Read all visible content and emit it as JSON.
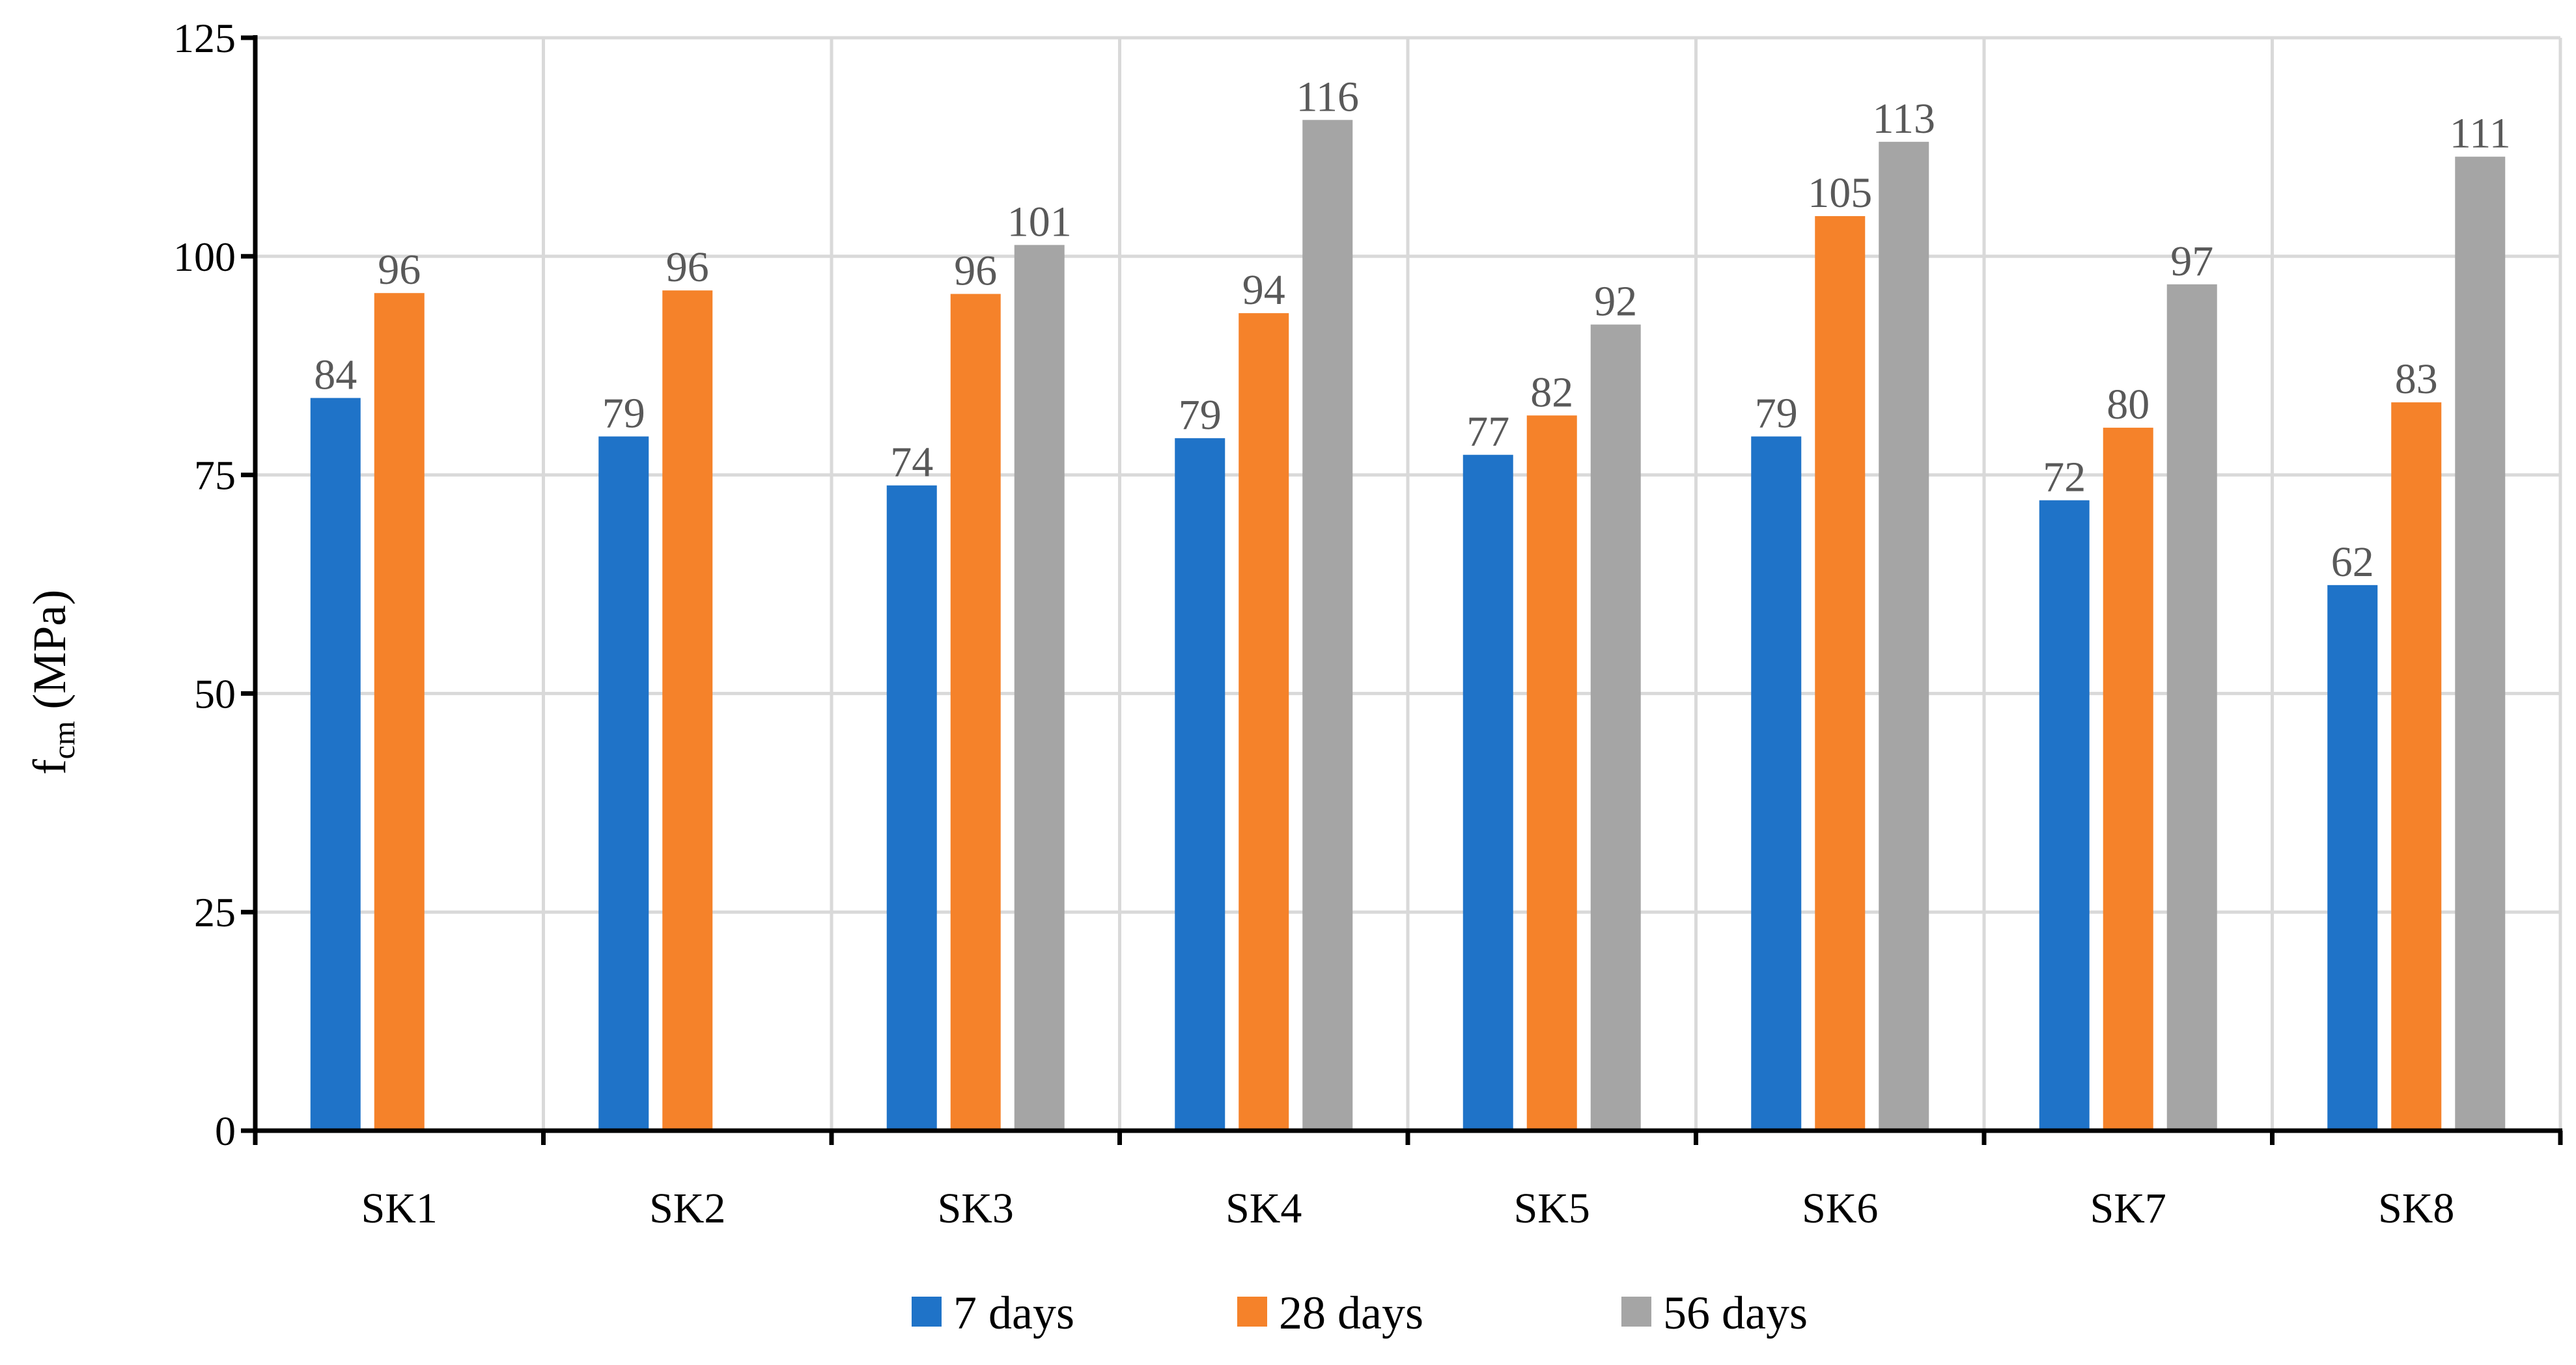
{
  "chart_data": {
    "type": "bar",
    "title": "",
    "xlabel": "",
    "ylabel": {
      "base": "f",
      "subscript": "cm",
      "unit": " (MPa)"
    },
    "ylim": [
      0,
      125
    ],
    "yticks": [
      "0",
      "25",
      "50",
      "75",
      "100",
      "125"
    ],
    "grid": true,
    "legend_position": "bottom",
    "categories": [
      "SK1",
      "SK2",
      "SK3",
      "SK4",
      "SK5",
      "SK6",
      "SK7",
      "SK8"
    ],
    "series": [
      {
        "name": "7 days",
        "color": "#1F73C8",
        "values": [
          83.8,
          79.4,
          73.8,
          79.2,
          77.3,
          79.4,
          72.1,
          62.4
        ],
        "labels": [
          "84",
          "79",
          "74",
          "79",
          "77",
          "79",
          "72",
          "62"
        ]
      },
      {
        "name": "28 days",
        "color": "#F5822A",
        "values": [
          95.8,
          96.1,
          95.7,
          93.5,
          81.8,
          104.6,
          80.4,
          83.3
        ],
        "labels": [
          "96",
          "96",
          "96",
          "94",
          "82",
          "105",
          "80",
          "83"
        ]
      },
      {
        "name": "56 days",
        "color": "#A5A5A5",
        "values": [
          null,
          null,
          101.3,
          115.6,
          92.2,
          113.1,
          96.8,
          111.4
        ],
        "labels": [
          null,
          null,
          "101",
          "116",
          "92",
          "113",
          "97",
          "111"
        ]
      }
    ]
  }
}
